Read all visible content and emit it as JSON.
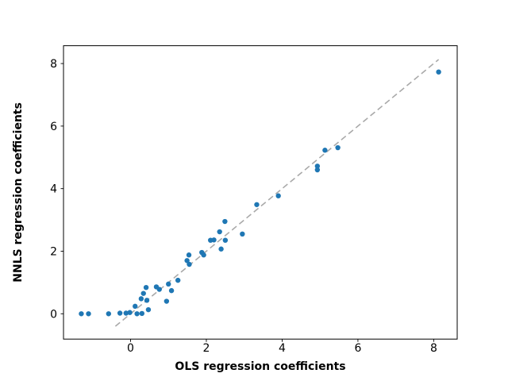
{
  "chart_data": {
    "type": "scatter",
    "title": "",
    "xlabel": "OLS regression coefficients",
    "ylabel": "NNLS regression coefficients",
    "xlim": [
      -1.77,
      8.62
    ],
    "ylim": [
      -0.81,
      8.57
    ],
    "xticks": [
      0,
      2,
      4,
      6,
      8
    ],
    "yticks": [
      0,
      2,
      4,
      6,
      8
    ],
    "grid": false,
    "legend_position": "none",
    "series": [
      {
        "name": "coefficient-points",
        "type": "scatter",
        "color": "#1f77b4",
        "marker_radius": 3.2,
        "points": [
          [
            -1.3,
            0.0
          ],
          [
            -1.11,
            0.0
          ],
          [
            -0.58,
            0.0
          ],
          [
            -0.28,
            0.02
          ],
          [
            -0.12,
            0.02
          ],
          [
            -0.02,
            0.04
          ],
          [
            0.12,
            0.24
          ],
          [
            0.17,
            0.0
          ],
          [
            0.28,
            0.48
          ],
          [
            0.3,
            0.01
          ],
          [
            0.34,
            0.65
          ],
          [
            0.41,
            0.84
          ],
          [
            0.43,
            0.43
          ],
          [
            0.47,
            0.13
          ],
          [
            0.68,
            0.86
          ],
          [
            0.76,
            0.78
          ],
          [
            0.95,
            0.4
          ],
          [
            1.0,
            0.95
          ],
          [
            1.08,
            0.74
          ],
          [
            1.25,
            1.07
          ],
          [
            1.49,
            1.7
          ],
          [
            1.54,
            1.88
          ],
          [
            1.55,
            1.58
          ],
          [
            1.88,
            1.96
          ],
          [
            1.93,
            1.88
          ],
          [
            2.11,
            2.35
          ],
          [
            2.2,
            2.36
          ],
          [
            2.39,
            2.07
          ],
          [
            2.35,
            2.62
          ],
          [
            2.49,
            2.95
          ],
          [
            2.5,
            2.35
          ],
          [
            2.95,
            2.55
          ],
          [
            3.33,
            3.49
          ],
          [
            3.9,
            3.77
          ],
          [
            4.93,
            4.6
          ],
          [
            4.93,
            4.72
          ],
          [
            5.13,
            5.23
          ],
          [
            5.47,
            5.31
          ],
          [
            8.13,
            7.73
          ]
        ]
      },
      {
        "name": "identity-line",
        "type": "line",
        "style": "dashed",
        "color": "#a9a9a9",
        "line_width": 1.6,
        "points": [
          [
            -0.4,
            -0.4
          ],
          [
            8.13,
            8.13
          ]
        ]
      }
    ]
  },
  "colors": {
    "marker": "#1f77b4",
    "dashed_line": "#a9a9a9",
    "background": "#ffffff",
    "spine": "#000000"
  }
}
